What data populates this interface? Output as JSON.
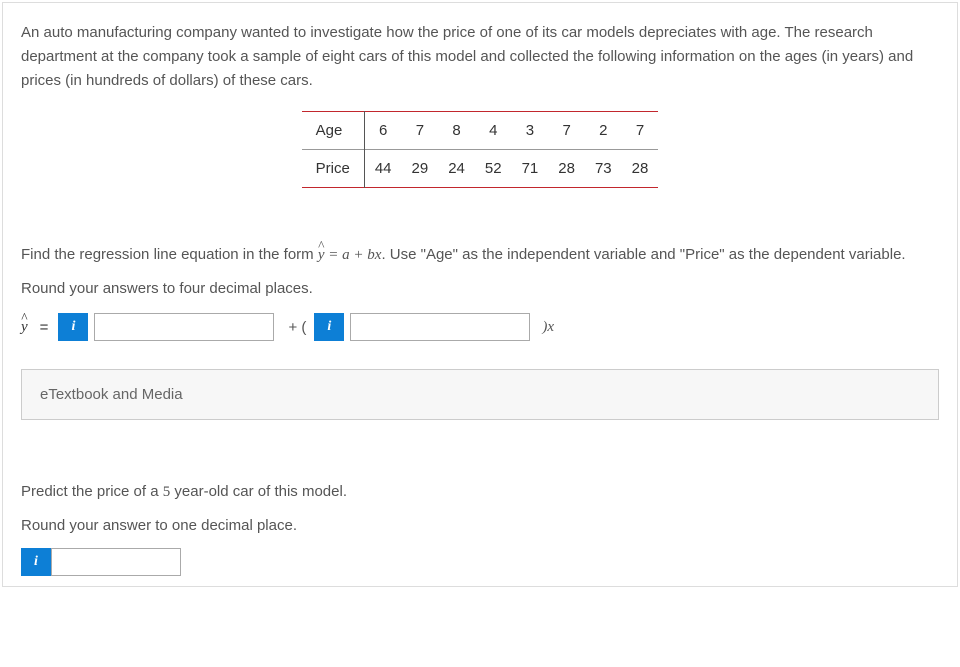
{
  "intro": "An auto manufacturing company wanted to investigate how the price of one of its car models depreciates with age. The research department at the company took a sample of eight cars of this model and collected the following information on the ages (in years) and prices (in hundreds of dollars) of these cars.",
  "table": {
    "row1_label": "Age",
    "row2_label": "Price",
    "ages": [
      "6",
      "7",
      "8",
      "4",
      "3",
      "7",
      "2",
      "7"
    ],
    "prices": [
      "44",
      "29",
      "24",
      "52",
      "71",
      "28",
      "73",
      "28"
    ],
    "border_color": "#c2272d",
    "divider_color": "#999999"
  },
  "q1": {
    "prompt_pre": "Find the regression line equation in the form ",
    "formula": "ŷ = a + bx",
    "prompt_post": ". Use \"Age\" as the independent variable and \"Price\" as the dependent variable.",
    "round_text": "Round your answers to four decimal places.",
    "yhat": "ŷ",
    "equals": "=",
    "plus_open": "+ (",
    "close_x": ")x",
    "input_a": "",
    "input_b": "",
    "info_glyph": "i"
  },
  "expander": {
    "label": "eTextbook and Media"
  },
  "q2": {
    "prompt_pre": "Predict the price of a ",
    "age": "5",
    "prompt_post": " year-old car of this model.",
    "round_text": "Round your answer to one decimal place.",
    "input": "",
    "info_glyph": "i"
  },
  "colors": {
    "info_button_bg": "#0d7fd6",
    "text": "#555555",
    "border": "#dddddd"
  }
}
